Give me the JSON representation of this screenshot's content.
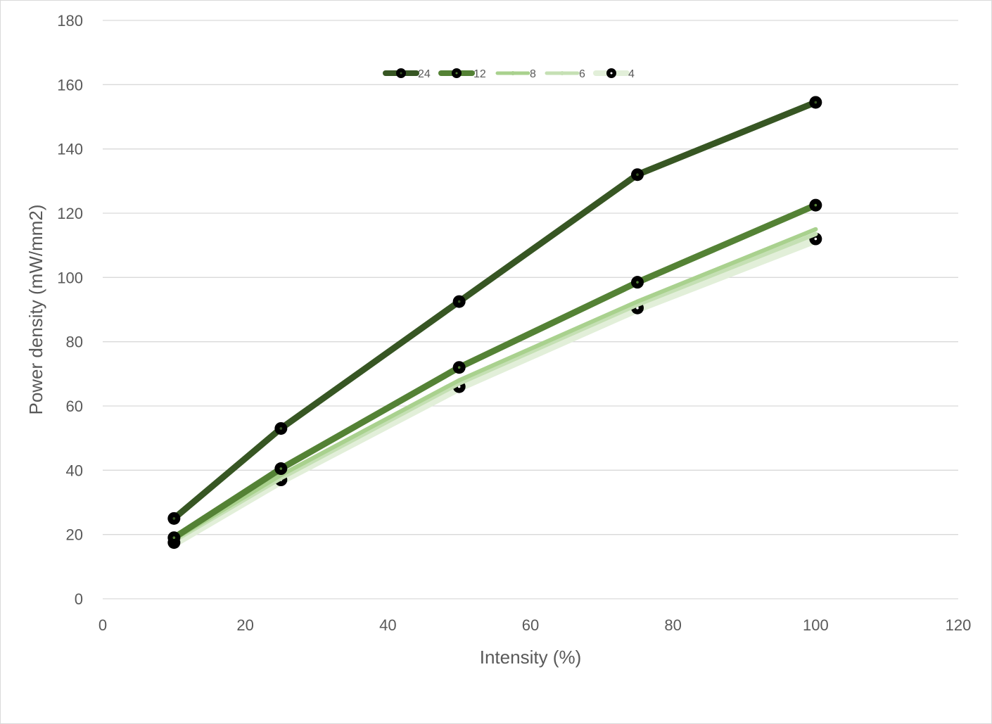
{
  "chart_data": {
    "type": "line",
    "title": "",
    "xlabel": "Intensity (%)",
    "ylabel": "Power density (mW/mm2)",
    "xlim": [
      0,
      120
    ],
    "ylim": [
      0,
      180
    ],
    "xticks": [
      0,
      20,
      40,
      60,
      80,
      100,
      120
    ],
    "yticks": [
      0,
      20,
      40,
      60,
      80,
      100,
      120,
      140,
      160,
      180
    ],
    "grid": "horizontal",
    "legend_position": "top-center",
    "x": [
      10,
      25,
      50,
      75,
      100
    ],
    "series": [
      {
        "name": "24",
        "color": "#375623",
        "values": [
          25,
          53,
          92.5,
          132,
          154.5
        ],
        "marker": "circle-black"
      },
      {
        "name": "12",
        "color": "#548235",
        "values": [
          19,
          40.5,
          72,
          98.5,
          122.5
        ],
        "marker": "circle-black"
      },
      {
        "name": "8",
        "color": "#a9d18e",
        "values": [
          18.5,
          38.5,
          68,
          92.5,
          115
        ],
        "marker": "circle-small"
      },
      {
        "name": "6",
        "color": "#c5e0b4",
        "values": [
          18,
          37.5,
          67,
          91.5,
          113.5
        ],
        "marker": "circle-small"
      },
      {
        "name": "4",
        "color": "#e2efd9",
        "values": [
          17.5,
          37,
          66,
          90.5,
          112
        ],
        "marker": "circle-black"
      }
    ]
  }
}
